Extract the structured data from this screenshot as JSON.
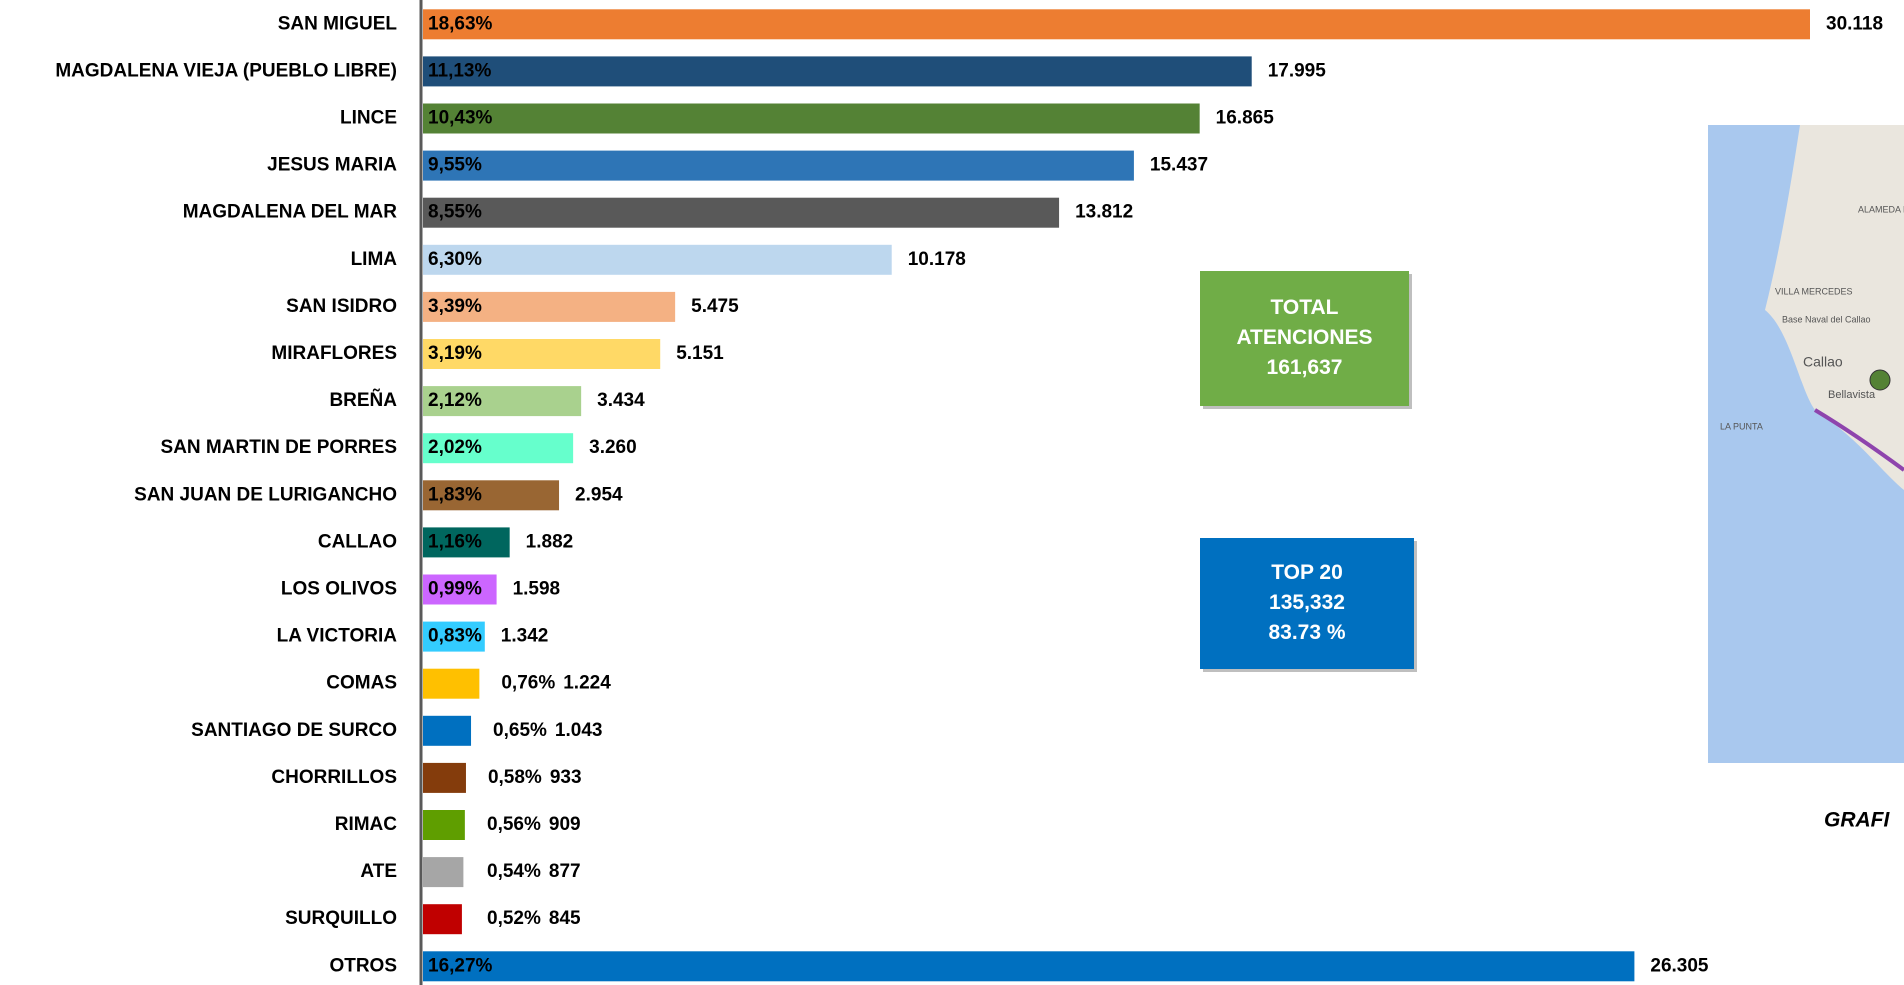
{
  "chart_data": {
    "type": "bar",
    "orientation": "horizontal",
    "categories": [
      "SAN MIGUEL",
      "MAGDALENA VIEJA (PUEBLO LIBRE)",
      "LINCE",
      "JESUS MARIA",
      "MAGDALENA DEL MAR",
      "LIMA",
      "SAN ISIDRO",
      "MIRAFLORES",
      "BREÑA",
      "SAN MARTIN DE PORRES",
      "SAN JUAN DE LURIGANCHO",
      "CALLAO",
      "LOS OLIVOS",
      "LA VICTORIA",
      "COMAS",
      "SANTIAGO DE SURCO",
      "CHORRILLOS",
      "RIMAC",
      "ATE",
      "SURQUILLO",
      "OTROS"
    ],
    "values": [
      30118,
      17995,
      16865,
      15437,
      13812,
      10178,
      5475,
      5151,
      3434,
      3260,
      2954,
      1882,
      1598,
      1342,
      1224,
      1043,
      933,
      909,
      877,
      845,
      26305
    ],
    "value_labels": [
      "30.118",
      "17.995",
      "16.865",
      "15.437",
      "13.812",
      "10.178",
      "5.475",
      "5.151",
      "3.434",
      "3.260",
      "2.954",
      "1.882",
      "1.598",
      "1.342",
      "1.224",
      "1.043",
      "933",
      "909",
      "877",
      "845",
      "26.305"
    ],
    "percentage_labels": [
      "18,63%",
      "11,13%",
      "10,43%",
      "9,55%",
      "8,55%",
      "6,30%",
      "3,39%",
      "3,19%",
      "2,12%",
      "2,02%",
      "1,83%",
      "1,16%",
      "0,99%",
      "0,83%",
      "0,76%",
      "0,65%",
      "0,58%",
      "0,56%",
      "0,54%",
      "0,52%",
      "16,27%"
    ],
    "colors": [
      "#ed7d31",
      "#1f4e79",
      "#548235",
      "#2e75b6",
      "#595959",
      "#bdd7ee",
      "#f4b183",
      "#ffd966",
      "#a9d18e",
      "#66ffcc",
      "#996633",
      "#00665e",
      "#cc66ff",
      "#33ccff",
      "#ffc000",
      "#0070c0",
      "#843c0c",
      "#5f9e00",
      "#a6a6a6",
      "#c00000",
      "#0070c0"
    ],
    "annotations": [
      {
        "lines": [
          "TOTAL",
          "ATENCIONES",
          "161,637"
        ],
        "color": "#70ad47"
      },
      {
        "lines": [
          "TOP 20",
          "135,332",
          "83.73 %"
        ],
        "color": "#0070c0"
      }
    ],
    "map_labels": [
      "ALAMEDA PORTUARIA",
      "VILLA MERCEDES",
      "Base Naval del Callao",
      "Callao",
      "Bellavista",
      "LA PUNTA"
    ],
    "caption": "GRAFI"
  }
}
